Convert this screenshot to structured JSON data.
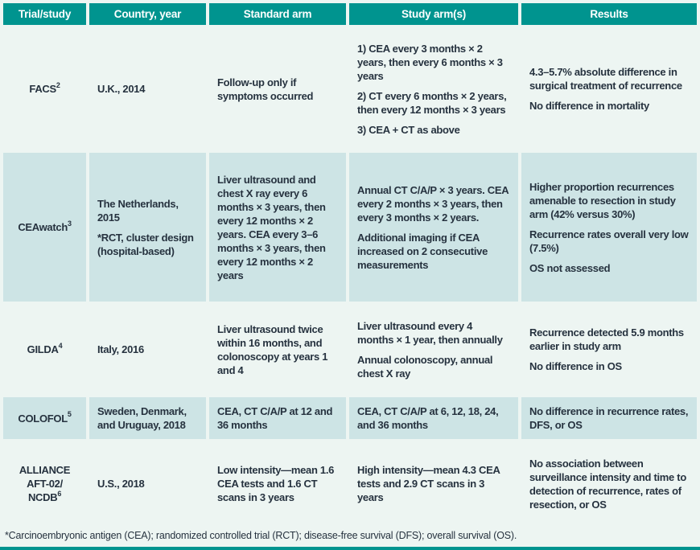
{
  "colors": {
    "header_bg": "#00948f",
    "header_text": "#ffffff",
    "row_shade": "#cde4e5",
    "row_plain": "#edf5f2",
    "text": "#26323f",
    "rule": "#00948f"
  },
  "table": {
    "columns": [
      "Trial/study",
      "Country, year",
      "Standard arm",
      "Study arm(s)",
      "Results"
    ],
    "rows": [
      {
        "trial": {
          "lines": [
            "FACS"
          ],
          "sup": "2"
        },
        "country": [
          "U.K., 2014"
        ],
        "standard": [
          "Follow-up only if symptoms occurred"
        ],
        "study": [
          "1) CEA every 3 months × 2 years, then every 6 months × 3 years",
          "2) CT every 6 months × 2 years, then every 12 months × 3 years",
          "3) CEA + CT as above"
        ],
        "results": [
          "4.3–5.7% absolute difference in surgical treatment of recurrence",
          "No difference in mortality"
        ]
      },
      {
        "trial": {
          "lines": [
            "CEAwatch"
          ],
          "sup": "3"
        },
        "country": [
          "The Netherlands, 2015",
          "*RCT, cluster design (hospital-based)"
        ],
        "standard": [
          "Liver ultrasound and chest X ray every 6 months × 3 years, then every 12 months × 2 years. CEA every 3–6 months × 3 years, then every 12 months × 2 years"
        ],
        "study": [
          "Annual CT C/A/P × 3 years. CEA every 2 months × 3 years, then every 3 months × 2 years.",
          "Additional imaging if CEA increased on 2 consecutive measurements"
        ],
        "results": [
          "Higher proportion recurrences amenable to resection in study arm (42% versus 30%)",
          "Recurrence rates overall very low (7.5%)",
          "OS not assessed"
        ]
      },
      {
        "trial": {
          "lines": [
            "GILDA"
          ],
          "sup": "4"
        },
        "country": [
          "Italy, 2016"
        ],
        "standard": [
          "Liver ultrasound twice within 16 months, and colonoscopy at years 1 and 4"
        ],
        "study": [
          "Liver ultrasound every 4 months × 1 year, then annually",
          "Annual colonoscopy, annual chest X ray"
        ],
        "results": [
          "Recurrence detected 5.9 months earlier in study arm",
          "No difference in OS"
        ]
      },
      {
        "trial": {
          "lines": [
            "COLOFOL"
          ],
          "sup": "5"
        },
        "country": [
          "Sweden, Denmark, and Uruguay, 2018"
        ],
        "standard": [
          "CEA, CT C/A/P at 12 and 36 months"
        ],
        "study": [
          "CEA, CT C/A/P at 6, 12, 18, 24, and 36 months"
        ],
        "results": [
          "No difference in recurrence rates, DFS, or OS"
        ]
      },
      {
        "trial": {
          "lines": [
            "ALLIANCE",
            "AFT-02/",
            "NCDB"
          ],
          "sup": "6"
        },
        "country": [
          "U.S., 2018"
        ],
        "standard": [
          "Low intensity—mean 1.6 CEA tests and 1.6 CT scans in 3 years"
        ],
        "study": [
          "High intensity—mean 4.3 CEA tests and 2.9 CT scans in 3 years"
        ],
        "results": [
          "No association between surveillance intensity and time to detection of recurrence, rates of resection, or OS"
        ]
      }
    ],
    "footnote": "*Carcinoembryonic antigen (CEA); randomized controlled trial (RCT); disease-free survival (DFS); overall survival (OS)."
  }
}
